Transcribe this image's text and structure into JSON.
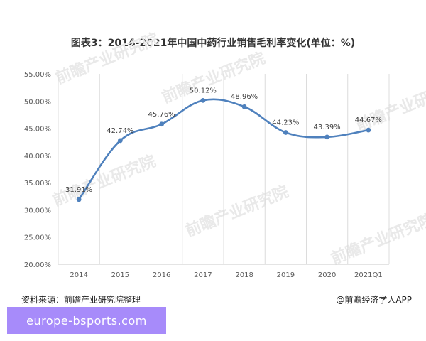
{
  "chart_data": {
    "type": "line",
    "title": "图表3：2014-2021年中国中药行业销售毛利率变化(单位：%)",
    "categories": [
      "2014",
      "2015",
      "2016",
      "2017",
      "2018",
      "2019",
      "2020",
      "2021Q1"
    ],
    "series": [
      {
        "values": [
          31.91,
          42.74,
          45.76,
          50.12,
          48.96,
          44.23,
          43.39,
          44.67
        ],
        "labels": [
          "31.91%",
          "42.74%",
          "45.76%",
          "50.12%",
          "48.96%",
          "44.23%",
          "43.39%",
          "44.67%"
        ]
      }
    ],
    "yticks": [
      "20.00%",
      "25.00%",
      "30.00%",
      "35.00%",
      "40.00%",
      "45.00%",
      "50.00%",
      "55.00%"
    ],
    "ylim": [
      20,
      55
    ],
    "xlabel": "",
    "ylabel": "",
    "grid": "vertical",
    "line_color": "#4f81bd",
    "smooth": true
  },
  "footer": {
    "source": "资料来源：前瞻产业研究院整理",
    "credit": "@前瞻经济学人APP"
  },
  "banner": {
    "text": "europe-bsports.com",
    "color": "#a78bfa"
  },
  "watermark": {
    "text": "前瞻产业研究院"
  }
}
